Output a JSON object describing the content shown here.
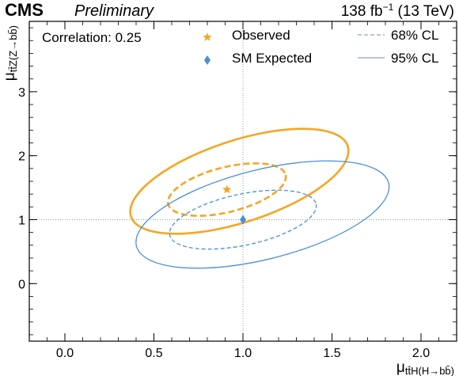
{
  "header": {
    "experiment": "CMS",
    "status": "Preliminary",
    "lumi_value": "138 fb",
    "lumi_exp": "−1",
    "lumi_energy": " (13 TeV)"
  },
  "chart_data": {
    "type": "scatter",
    "xlabel_main": "μ",
    "xlabel_sub": "tt̄H(H→bb̄)",
    "ylabel_main": "μ",
    "ylabel_sub": "tt̄Z(Z→bb̄)",
    "xlim": [
      -0.2,
      2.2
    ],
    "ylim": [
      -0.9,
      4.1
    ],
    "x_ticks": [
      {
        "v": 0.0,
        "label": "0.0"
      },
      {
        "v": 0.5,
        "label": "0.5"
      },
      {
        "v": 1.0,
        "label": "1.0"
      },
      {
        "v": 1.5,
        "label": "1.5"
      },
      {
        "v": 2.0,
        "label": "2.0"
      }
    ],
    "y_ticks": [
      {
        "v": 0,
        "label": "0"
      },
      {
        "v": 1,
        "label": "1"
      },
      {
        "v": 2,
        "label": "2"
      },
      {
        "v": 3,
        "label": "3"
      }
    ],
    "annotation": "Correlation: 0.25",
    "reference_lines": {
      "x": 1.0,
      "y": 1.0
    },
    "points": [
      {
        "name": "Observed",
        "x": 0.91,
        "y": 1.47,
        "marker": "star",
        "color": "#f5a623"
      },
      {
        "name": "SM Expected",
        "x": 1.0,
        "y": 1.0,
        "marker": "diamond",
        "color": "#4a90d9"
      }
    ],
    "contours": [
      {
        "set": "Observed",
        "cl": "68% CL",
        "style": "dashed",
        "color": "#f5a623",
        "cx": 0.91,
        "cy": 1.47,
        "rx": 0.34,
        "ry": 0.7,
        "angle": -14
      },
      {
        "set": "Observed",
        "cl": "95% CL",
        "style": "solid",
        "color": "#f5a623",
        "cx": 0.98,
        "cy": 1.6,
        "rx": 0.64,
        "ry": 1.28,
        "angle": -18
      },
      {
        "set": "SM Expected",
        "cl": "68% CL",
        "style": "dashed",
        "color": "#4a90d9",
        "cx": 1.0,
        "cy": 1.0,
        "rx": 0.42,
        "ry": 0.8,
        "angle": -12
      },
      {
        "set": "SM Expected",
        "cl": "95% CL",
        "style": "solid",
        "color": "#4a90d9",
        "cx": 1.11,
        "cy": 1.08,
        "rx": 0.73,
        "ry": 1.4,
        "angle": -14
      }
    ],
    "legend": [
      {
        "label": "Observed",
        "kind": "star",
        "color": "#f5a623"
      },
      {
        "label": "SM Expected",
        "kind": "diamond",
        "color": "#4a90d9"
      },
      {
        "label": "68% CL",
        "kind": "dashed",
        "color": "#8aa4c8"
      },
      {
        "label": "95% CL",
        "kind": "solid",
        "color": "#8aa4c8"
      }
    ],
    "legend_placement": "top",
    "grid": false
  }
}
